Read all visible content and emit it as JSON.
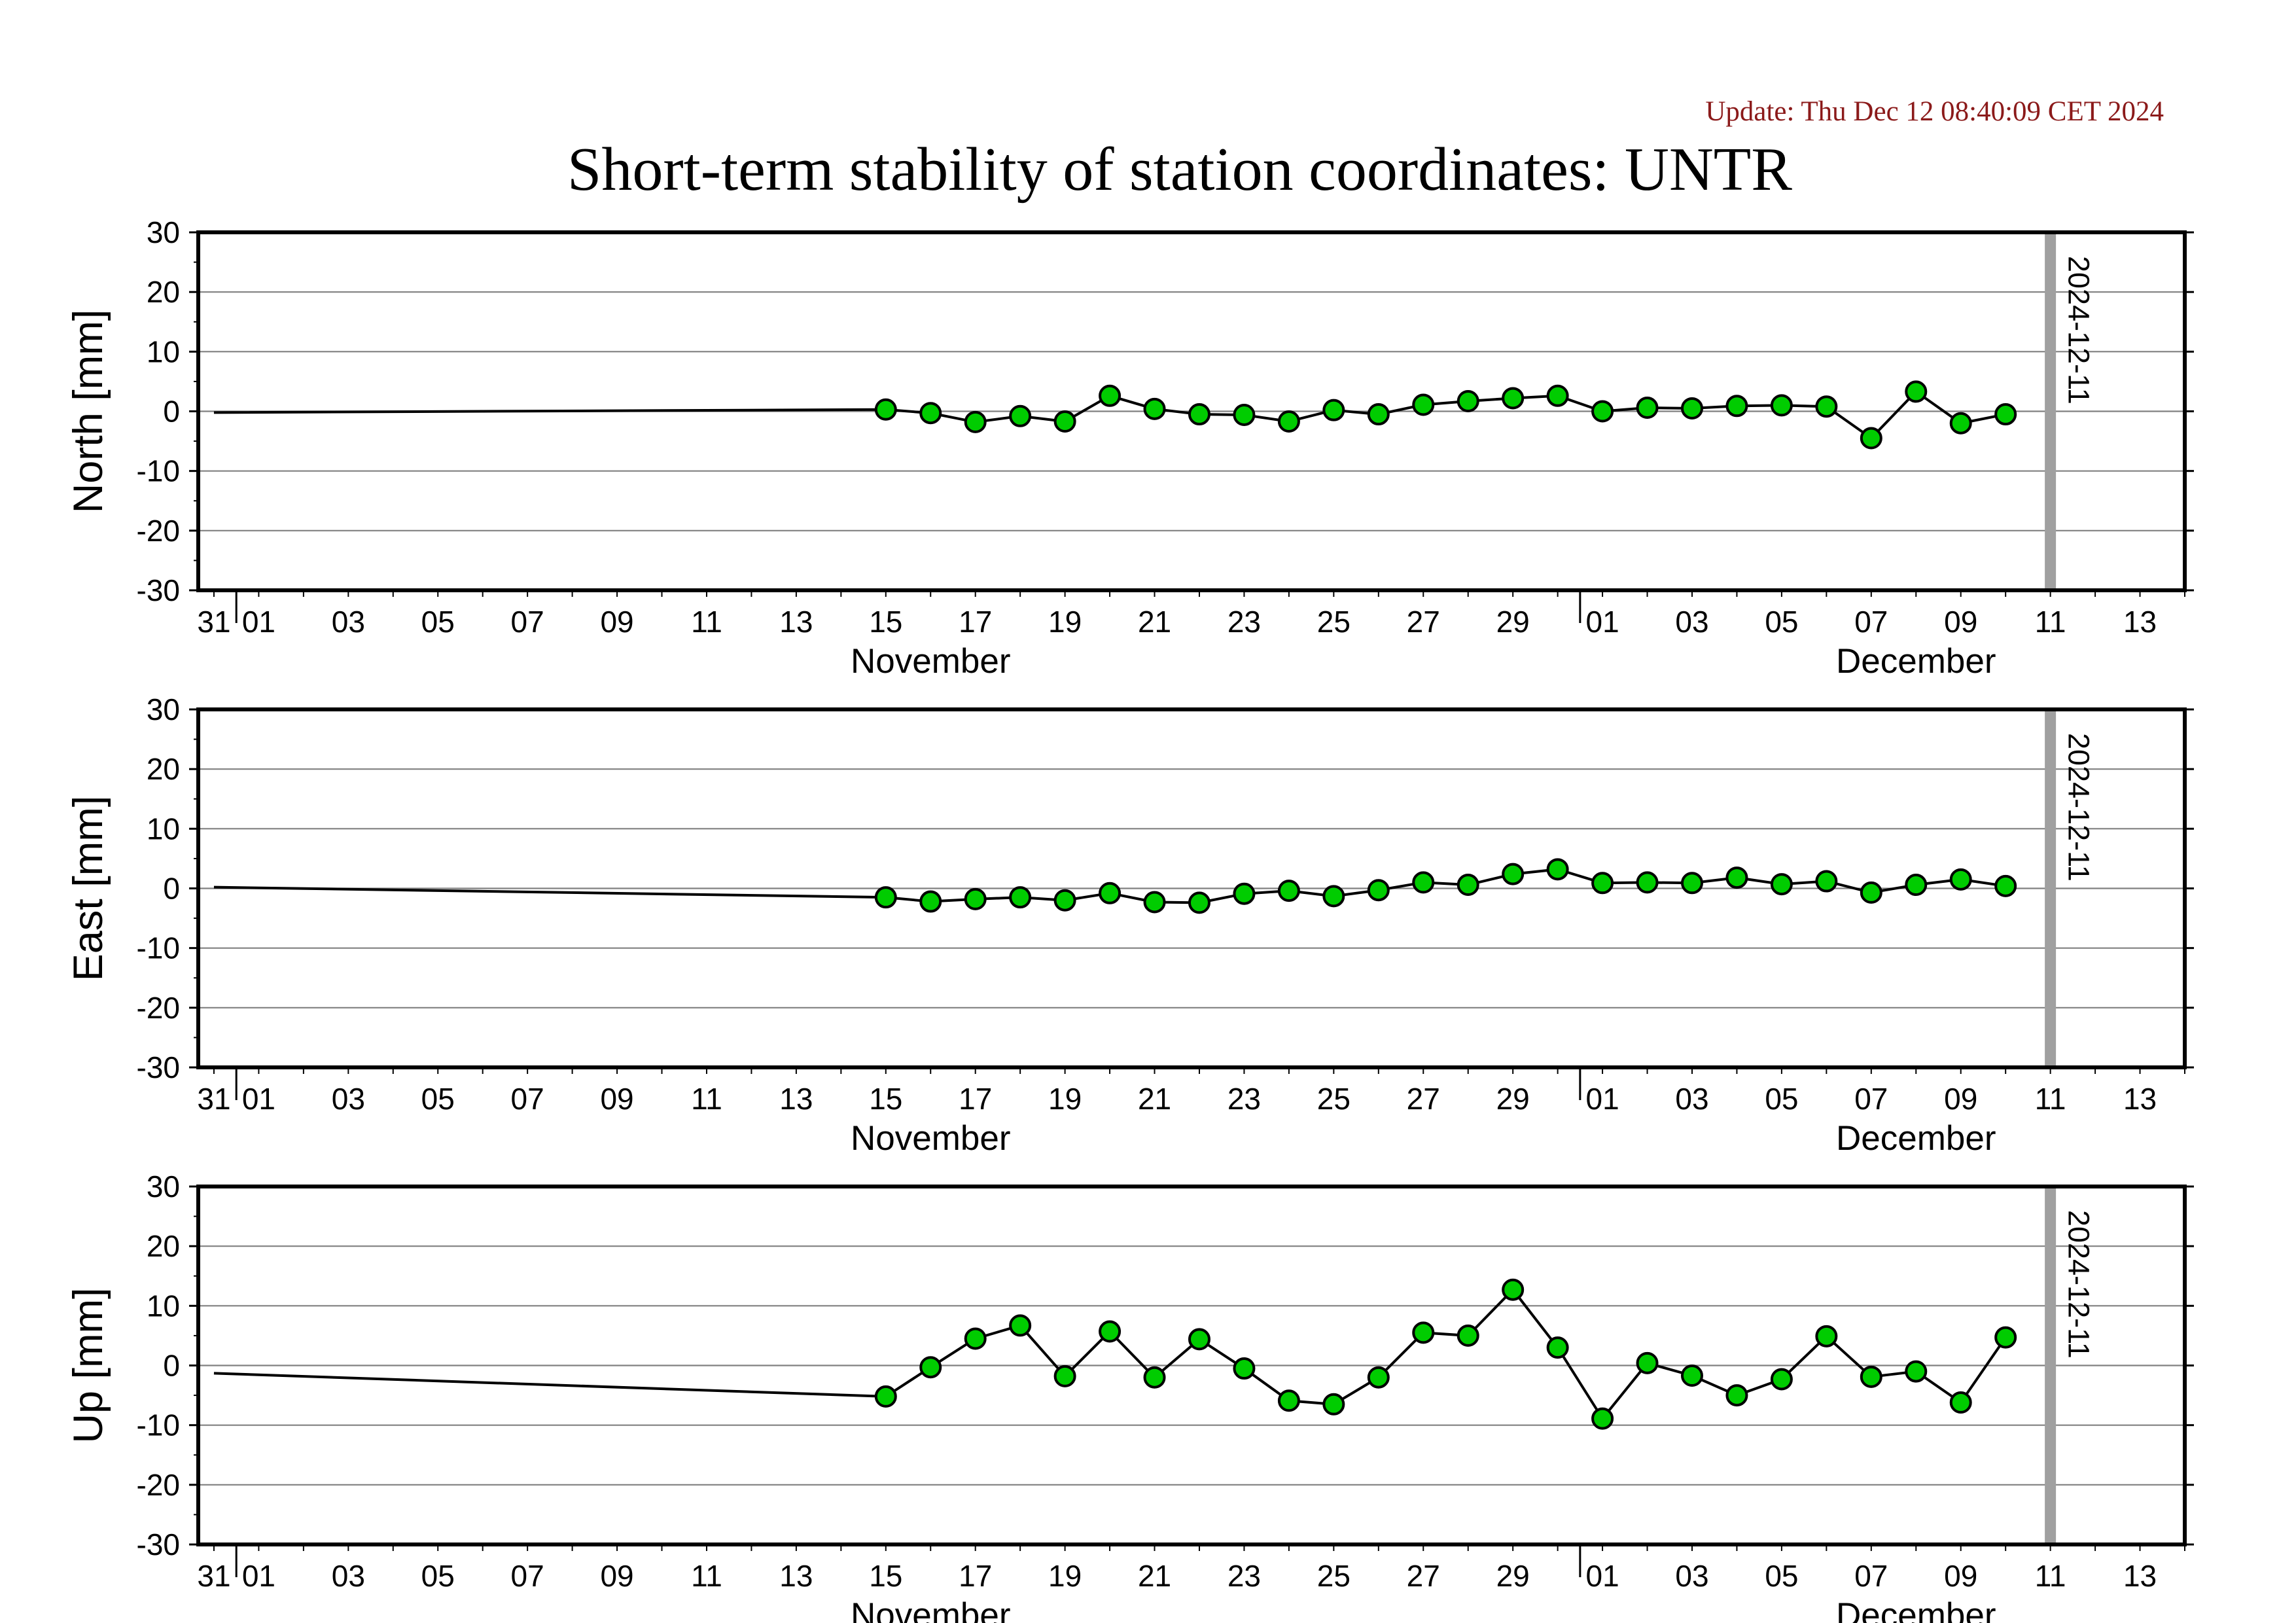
{
  "header": {
    "update_text": "Update: Thu Dec 12 08:40:09 CET 2024",
    "title": "Short-term stability of station coordinates: UNTR"
  },
  "colors": {
    "marker_fill": "#00cc00",
    "marker_stroke": "#000000",
    "line": "#000000",
    "grid": "#808080",
    "vline": "#a0a0a0",
    "update_text": "#8b1a1a"
  },
  "chart_data": {
    "type": "line",
    "x_axis": {
      "range": [
        "2024-10-31",
        "2024-12-14"
      ],
      "tick_labels": [
        "31",
        "01",
        "03",
        "05",
        "07",
        "09",
        "11",
        "13",
        "15",
        "17",
        "19",
        "21",
        "23",
        "25",
        "27",
        "29",
        "01",
        "03",
        "05",
        "07",
        "09",
        "11",
        "13"
      ],
      "month_labels": [
        "November",
        "December"
      ]
    },
    "y_axis": {
      "range": [
        -30,
        30
      ],
      "tick_labels": [
        "30",
        "20",
        "10",
        "0",
        "-10",
        "-20",
        "-30"
      ]
    },
    "vertical_marker": {
      "date": "2024-12-11",
      "label": "2024-12-11"
    },
    "grid": "horizontal",
    "panels": [
      {
        "ylabel": "North [mm]",
        "x": [
          "2024-10-31",
          "2024-11-15",
          "2024-11-16",
          "2024-11-17",
          "2024-11-18",
          "2024-11-19",
          "2024-11-20",
          "2024-11-21",
          "2024-11-22",
          "2024-11-23",
          "2024-11-24",
          "2024-11-25",
          "2024-11-26",
          "2024-11-27",
          "2024-11-28",
          "2024-11-29",
          "2024-11-30",
          "2024-12-01",
          "2024-12-02",
          "2024-12-03",
          "2024-12-04",
          "2024-12-05",
          "2024-12-06",
          "2024-12-07",
          "2024-12-08",
          "2024-12-09",
          "2024-12-10"
        ],
        "y": [
          -0.2,
          0.3,
          -0.3,
          -1.8,
          -0.8,
          -1.7,
          2.6,
          0.4,
          -0.5,
          -0.6,
          -1.7,
          0.2,
          -0.5,
          1.1,
          1.7,
          2.2,
          2.6,
          0.0,
          0.6,
          0.5,
          0.9,
          1.0,
          0.8,
          -4.5,
          3.3,
          -2.0,
          -0.5
        ],
        "markers_from_index": 1
      },
      {
        "ylabel": "East [mm]",
        "x": [
          "2024-10-31",
          "2024-11-15",
          "2024-11-16",
          "2024-11-17",
          "2024-11-18",
          "2024-11-19",
          "2024-11-20",
          "2024-11-21",
          "2024-11-22",
          "2024-11-23",
          "2024-11-24",
          "2024-11-25",
          "2024-11-26",
          "2024-11-27",
          "2024-11-28",
          "2024-11-29",
          "2024-11-30",
          "2024-12-01",
          "2024-12-02",
          "2024-12-03",
          "2024-12-04",
          "2024-12-05",
          "2024-12-06",
          "2024-12-07",
          "2024-12-08",
          "2024-12-09",
          "2024-12-10"
        ],
        "y": [
          0.2,
          -1.5,
          -2.2,
          -1.8,
          -1.5,
          -2.0,
          -0.8,
          -2.3,
          -2.4,
          -0.9,
          -0.4,
          -1.3,
          -0.3,
          1.0,
          0.6,
          2.4,
          3.2,
          0.9,
          1.0,
          0.9,
          1.8,
          0.7,
          1.2,
          -0.7,
          0.6,
          1.5,
          0.4
        ],
        "markers_from_index": 1
      },
      {
        "ylabel": "Up [mm]",
        "x": [
          "2024-10-31",
          "2024-11-15",
          "2024-11-16",
          "2024-11-17",
          "2024-11-18",
          "2024-11-19",
          "2024-11-20",
          "2024-11-21",
          "2024-11-22",
          "2024-11-23",
          "2024-11-24",
          "2024-11-25",
          "2024-11-26",
          "2024-11-27",
          "2024-11-28",
          "2024-11-29",
          "2024-11-30",
          "2024-12-01",
          "2024-12-02",
          "2024-12-03",
          "2024-12-04",
          "2024-12-05",
          "2024-12-06",
          "2024-12-07",
          "2024-12-08",
          "2024-12-09",
          "2024-12-10"
        ],
        "y": [
          -1.3,
          -5.2,
          -0.3,
          4.5,
          6.7,
          -1.8,
          5.7,
          -2.0,
          4.4,
          -0.5,
          -5.9,
          -6.5,
          -2.0,
          5.5,
          5.0,
          12.7,
          3.0,
          -8.9,
          0.4,
          -1.7,
          -5.0,
          -2.3,
          4.9,
          -1.9,
          -1.0,
          -6.2,
          4.7
        ],
        "markers_from_index": 1
      }
    ]
  }
}
